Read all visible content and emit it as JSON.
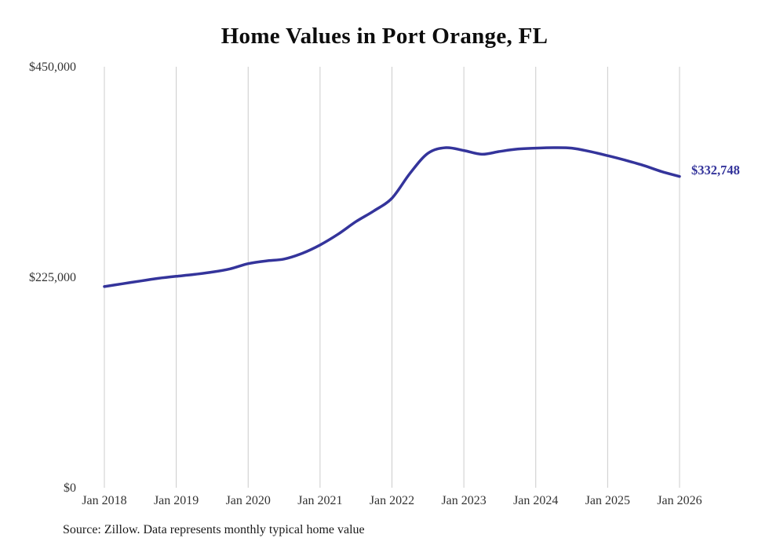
{
  "title": "Home Values in Port Orange, FL",
  "source_note": "Source: Zillow. Data represents monthly typical home value",
  "chart_data": {
    "type": "line",
    "title": "Home Values in Port Orange, FL",
    "xlabel": "",
    "ylabel": "",
    "ylim": [
      0,
      450000
    ],
    "grid": "vertical-only",
    "legend": "none",
    "line_color": "#34349b",
    "gridline_color": "#cccccc",
    "tick_label_color": "#333333",
    "y_ticks": [
      {
        "value": 450000,
        "label": "$450,000"
      },
      {
        "value": 225000,
        "label": "$225,000"
      },
      {
        "value": 0,
        "label": "$0"
      }
    ],
    "x_tick_labels": [
      "Jan 2018",
      "Jan 2019",
      "Jan 2020",
      "Jan 2021",
      "Jan 2022",
      "Jan 2023",
      "Jan 2024",
      "Jan 2025",
      "Jan 2026"
    ],
    "series": [
      {
        "name": "Monthly typical home value",
        "x": [
          2018.0,
          2018.25,
          2018.5,
          2018.75,
          2019.0,
          2019.25,
          2019.5,
          2019.75,
          2020.0,
          2020.25,
          2020.5,
          2020.75,
          2021.0,
          2021.25,
          2021.5,
          2021.75,
          2022.0,
          2022.25,
          2022.5,
          2022.75,
          2023.0,
          2023.25,
          2023.5,
          2023.75,
          2024.0,
          2024.25,
          2024.5,
          2024.75,
          2025.0,
          2025.25,
          2025.5,
          2025.75,
          2026.0
        ],
        "values": [
          215000,
          218000,
          221000,
          223800,
          226000,
          228000,
          230500,
          234000,
          239500,
          242500,
          244500,
          250500,
          259500,
          271000,
          284500,
          296000,
          309500,
          336000,
          357500,
          363500,
          360500,
          356500,
          359500,
          362000,
          363000,
          363500,
          363000,
          359500,
          355000,
          350000,
          344500,
          338000,
          332748
        ]
      }
    ],
    "end_annotation": {
      "label": "$332,748",
      "value": 332748
    }
  }
}
